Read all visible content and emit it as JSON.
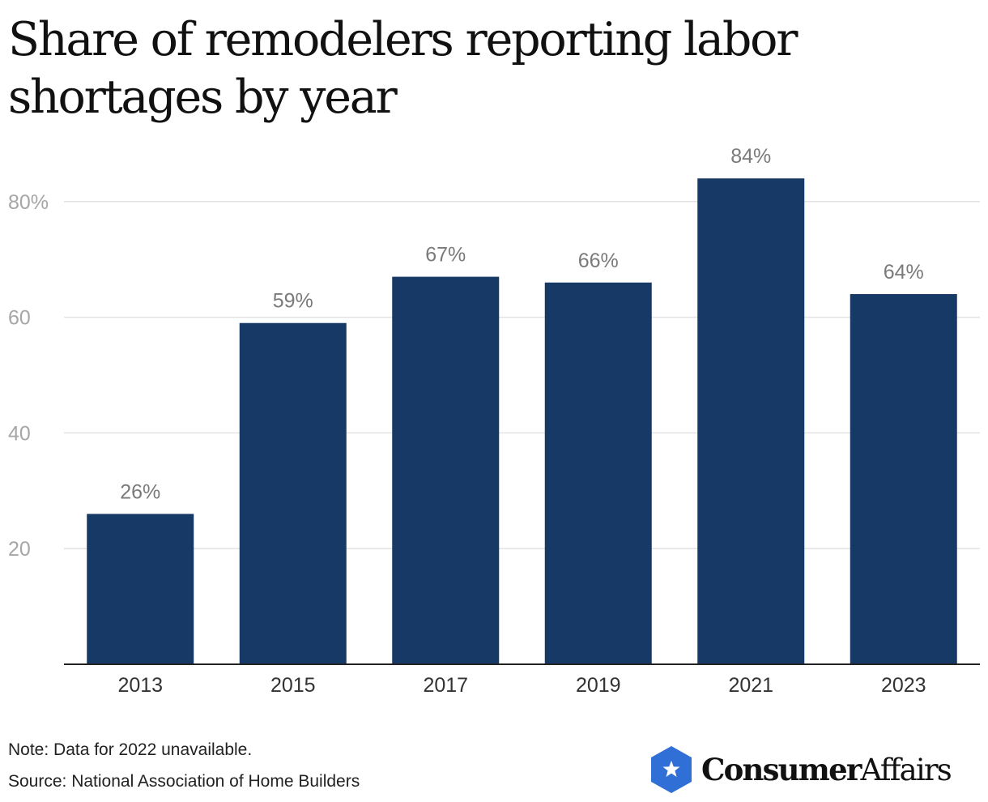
{
  "title": "Share of remodelers reporting labor shortages by year",
  "colors": {
    "bar": "#173965",
    "grid": "#e2e2e2",
    "axis": "#222222",
    "logo": "#2f6fd6"
  },
  "chart_data": {
    "type": "bar",
    "title": "Share of remodelers reporting labor shortages by year",
    "categories": [
      "2013",
      "2015",
      "2017",
      "2019",
      "2021",
      "2023"
    ],
    "values": [
      26,
      59,
      67,
      66,
      84,
      64
    ],
    "data_labels": [
      "26%",
      "59%",
      "67%",
      "66%",
      "84%",
      "64%"
    ],
    "ylim": [
      0,
      90
    ],
    "yticks": [
      20,
      40,
      60,
      80
    ],
    "ytick_labels": [
      "20",
      "40",
      "60",
      "80%"
    ],
    "xlabel": "",
    "ylabel": "",
    "grid": true
  },
  "footer": {
    "note": "Note: Data for 2022 unavailable.",
    "source": "Source: National Association of Home Builders"
  },
  "logo": {
    "part1": "Consumer",
    "part2": "Affairs",
    "icon": "star-shield-icon"
  }
}
